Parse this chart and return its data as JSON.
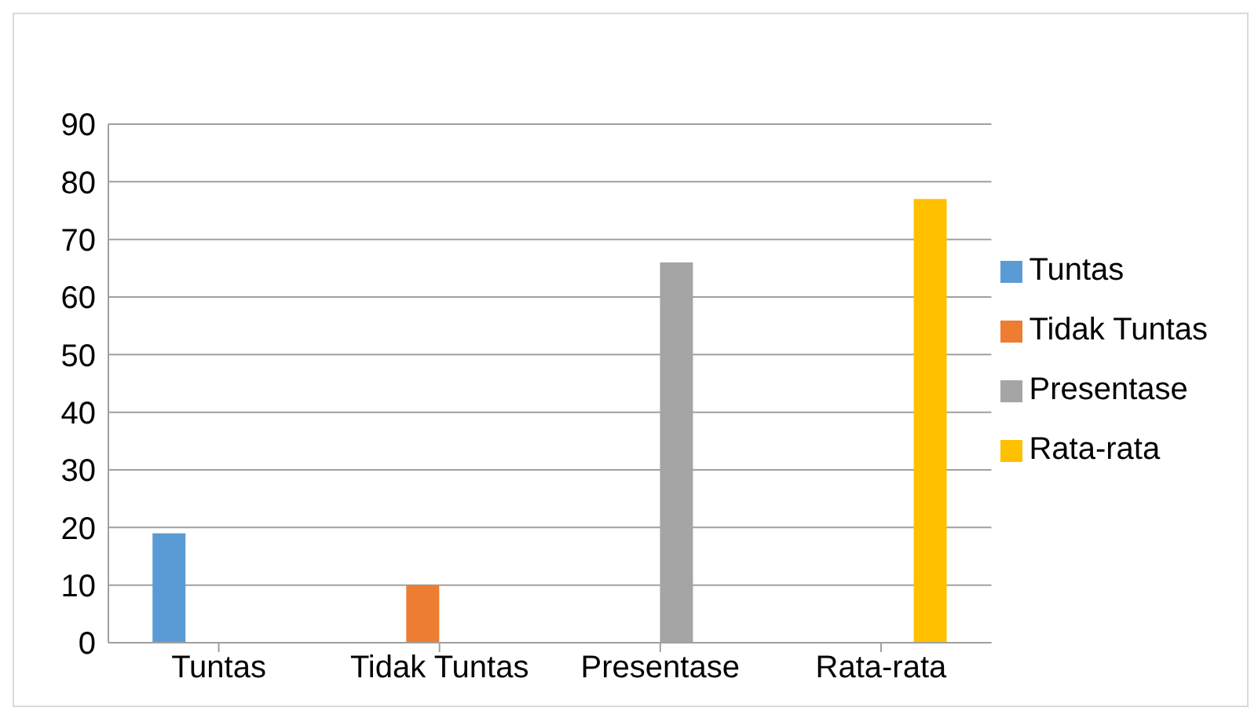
{
  "chart_data": {
    "type": "bar",
    "categories": [
      "Tuntas",
      "Tidak Tuntas",
      "Presentase",
      "Rata-rata"
    ],
    "series": [
      {
        "name": "Tuntas",
        "color": "#5b9bd5",
        "values": [
          19,
          null,
          null,
          null
        ]
      },
      {
        "name": "Tidak Tuntas",
        "color": "#ed7d31",
        "values": [
          null,
          10,
          null,
          null
        ]
      },
      {
        "name": "Presentase",
        "color": "#a5a5a5",
        "values": [
          null,
          null,
          66,
          null
        ]
      },
      {
        "name": "Rata-rata",
        "color": "#ffc000",
        "values": [
          null,
          null,
          null,
          77
        ]
      }
    ],
    "ylim": [
      0,
      90
    ],
    "yticks": [
      0,
      10,
      20,
      30,
      40,
      50,
      60,
      70,
      80,
      90
    ],
    "grid": "y",
    "legend": "right"
  }
}
